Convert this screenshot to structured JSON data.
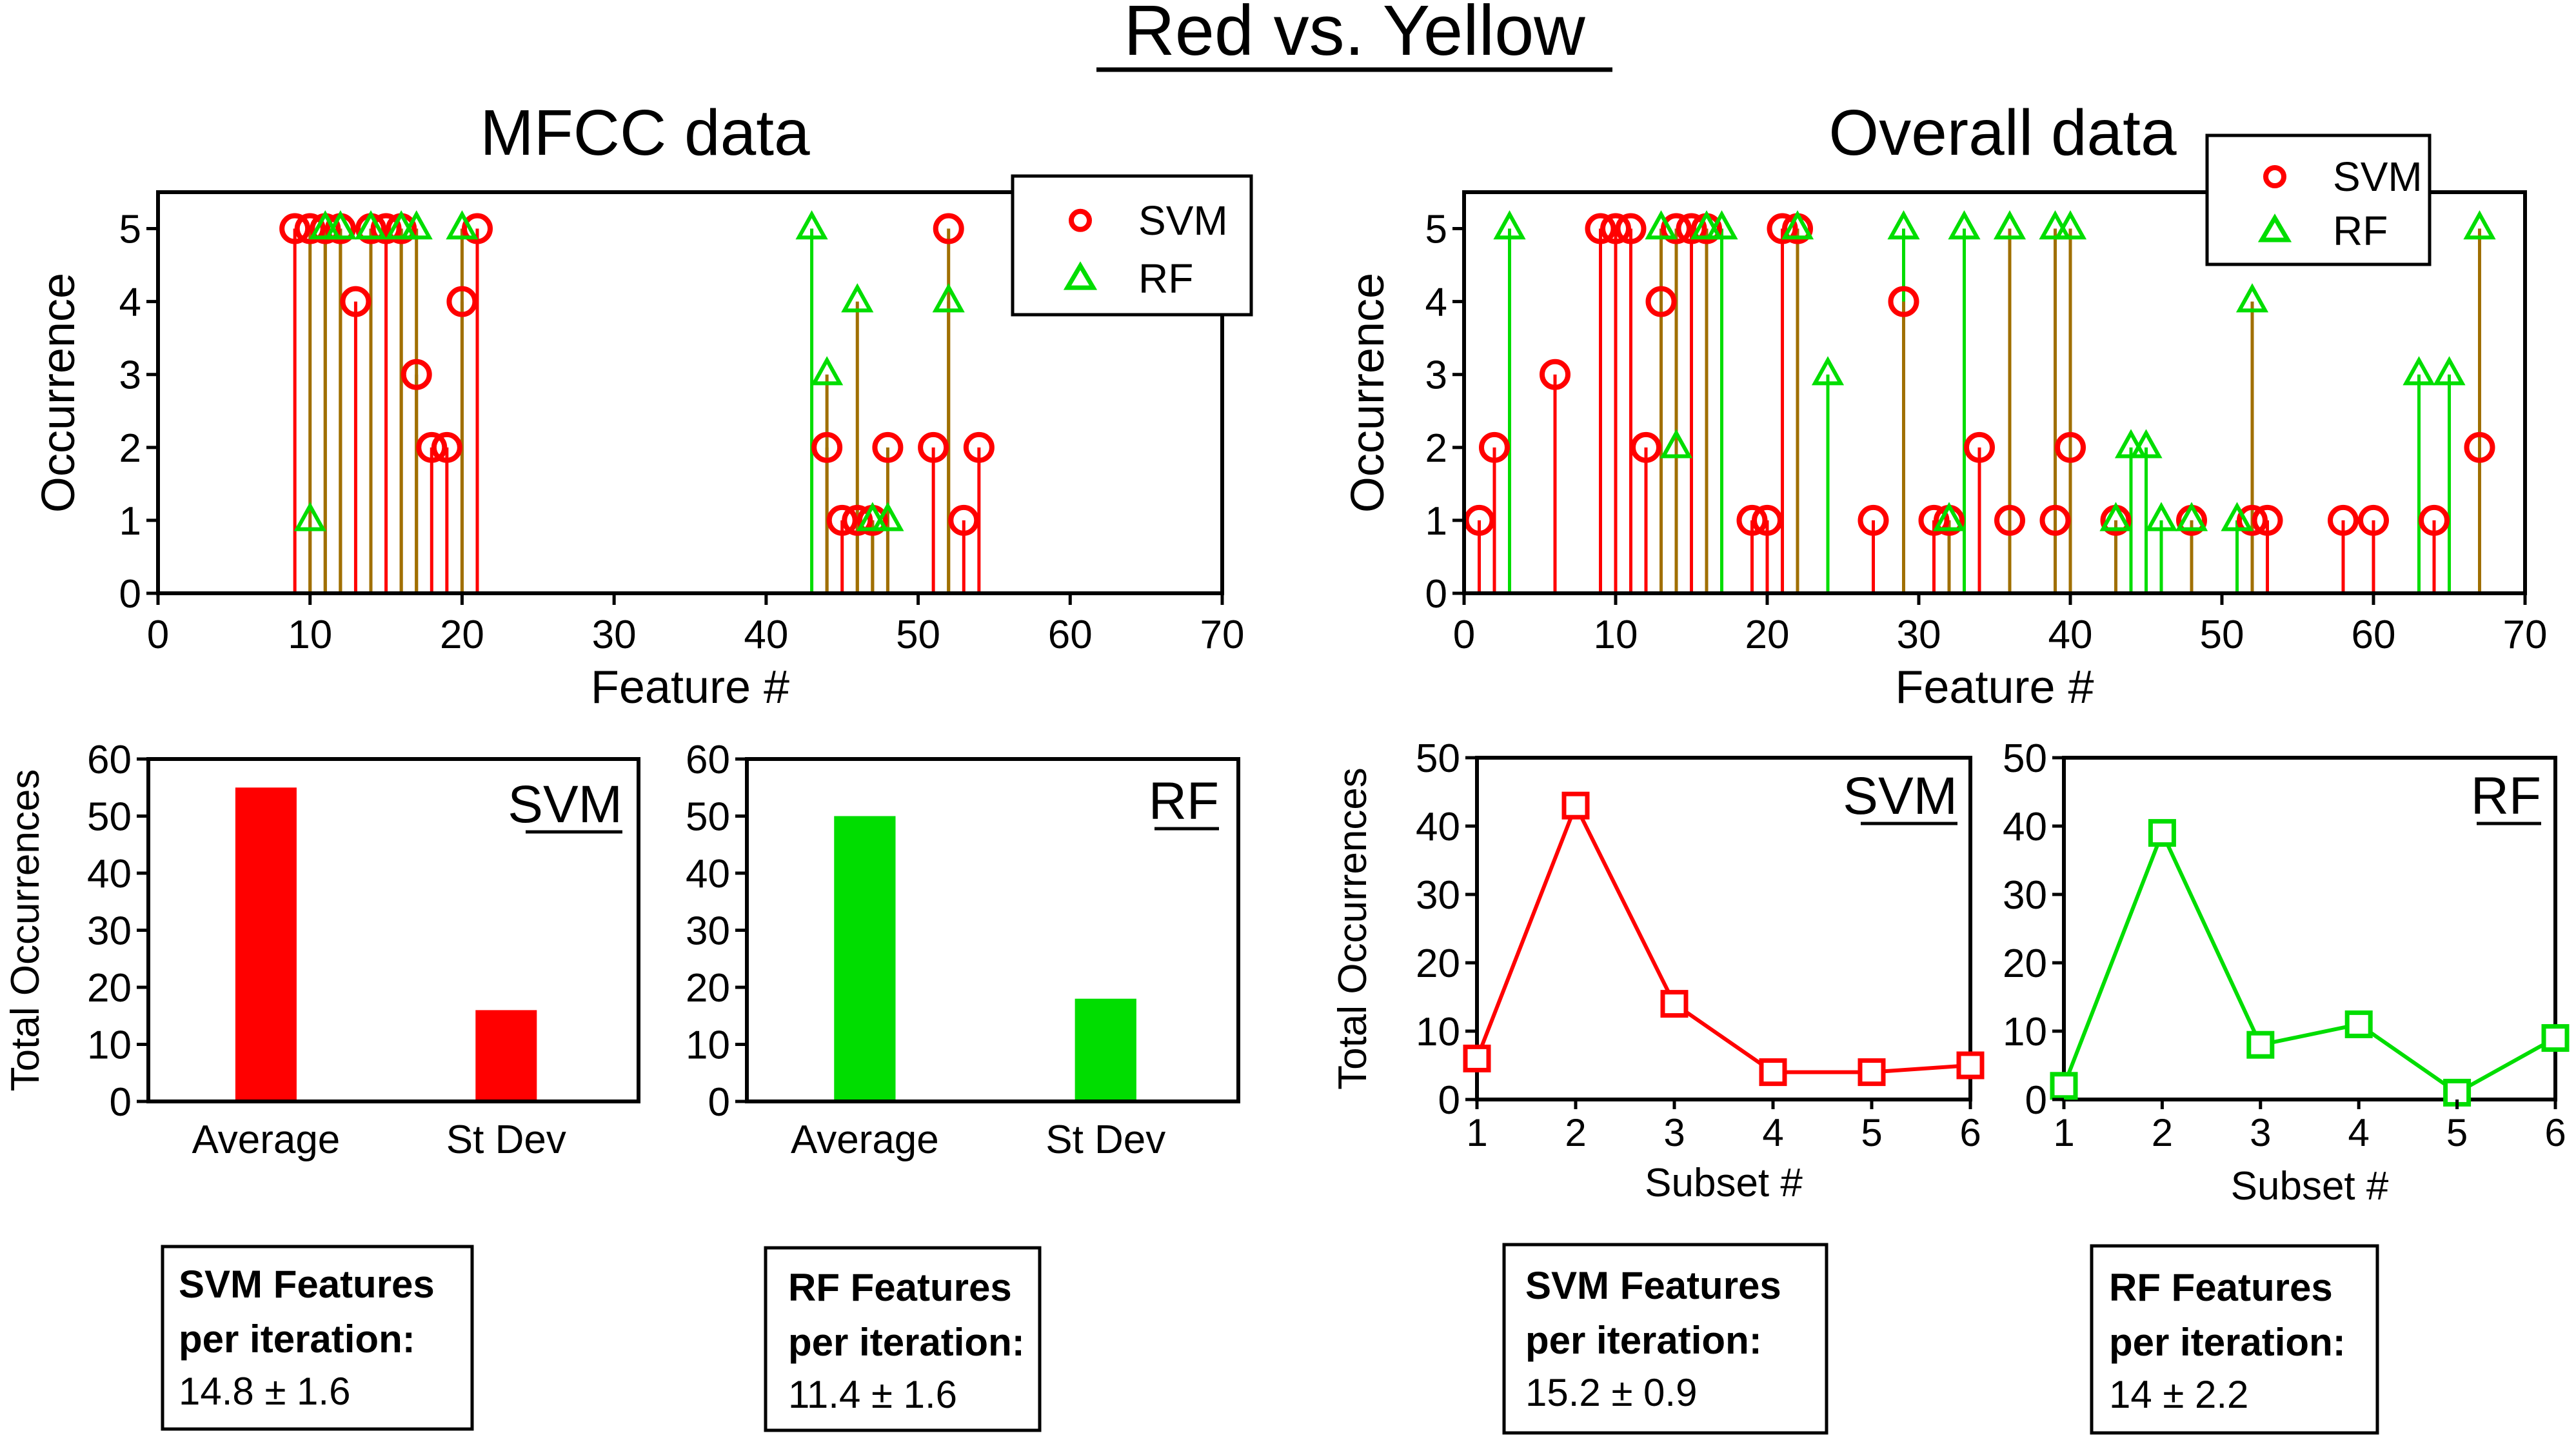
{
  "title": "Red vs. Yellow",
  "colors": {
    "svm": "#ff0000",
    "rf": "#00dd00",
    "overlap": "#a06f00",
    "axis": "#000000"
  },
  "chart_data": [
    {
      "id": "mfcc",
      "type": "stem",
      "title": "MFCC data",
      "xlabel": "Feature #",
      "ylabel": "Occurrence",
      "xlim": [
        0,
        70
      ],
      "ylim": [
        0,
        5.5
      ],
      "xticks": [
        "0",
        "10",
        "20",
        "30",
        "40",
        "50",
        "60",
        "70"
      ],
      "yticks": [
        "0",
        "1",
        "2",
        "3",
        "4",
        "5"
      ],
      "legend": {
        "position": "top-right",
        "svm_label": "SVM",
        "rf_label": "RF"
      },
      "series": [
        {
          "name": "SVM",
          "marker": "circle",
          "x": [
            9,
            10,
            11,
            12,
            13,
            14,
            15,
            16,
            17,
            18,
            19,
            20,
            21,
            44,
            45,
            46,
            47,
            48,
            51,
            52,
            53,
            54
          ],
          "y": [
            5,
            5,
            5,
            5,
            4,
            5,
            5,
            5,
            3,
            2,
            2,
            4,
            5,
            2,
            1,
            1,
            1,
            2,
            2,
            5,
            1,
            2
          ]
        },
        {
          "name": "RF",
          "marker": "triangle",
          "x": [
            10,
            11,
            12,
            14,
            16,
            17,
            20,
            43,
            44,
            46,
            47,
            48,
            52
          ],
          "y": [
            1,
            5,
            5,
            5,
            5,
            5,
            5,
            5,
            3,
            4,
            1,
            1,
            4
          ]
        }
      ]
    },
    {
      "id": "overall",
      "type": "stem",
      "title": "Overall data",
      "xlabel": "Feature #",
      "ylabel": "Occurrence",
      "xlim": [
        0,
        70
      ],
      "ylim": [
        0,
        5.5
      ],
      "xticks": [
        "0",
        "10",
        "20",
        "30",
        "40",
        "50",
        "60",
        "70"
      ],
      "yticks": [
        "0",
        "1",
        "2",
        "3",
        "4",
        "5"
      ],
      "legend": {
        "position": "top-right",
        "svm_label": "SVM",
        "rf_label": "RF"
      },
      "series": [
        {
          "name": "SVM",
          "marker": "circle",
          "x": [
            1,
            2,
            6,
            9,
            10,
            11,
            12,
            13,
            14,
            15,
            16,
            19,
            20,
            21,
            22,
            27,
            31,
            32,
            34,
            36,
            39,
            40,
            43,
            48,
            52,
            53,
            58,
            60,
            64,
            67
          ],
          "y": [
            1,
            2,
            3,
            5,
            5,
            5,
            2,
            4,
            5,
            5,
            5,
            1,
            1,
            5,
            5,
            1,
            1,
            1,
            2,
            1,
            1,
            2,
            1,
            1,
            1,
            1,
            1,
            1,
            1,
            2
          ]
        },
        {
          "name": "RF",
          "marker": "triangle",
          "x": [
            3,
            13,
            14,
            16,
            17,
            22,
            24,
            29,
            32,
            33,
            36,
            39,
            40,
            43,
            44,
            45,
            46,
            48,
            51,
            52,
            63,
            65,
            67
          ],
          "y": [
            5,
            5,
            2,
            5,
            5,
            5,
            3,
            5,
            1,
            5,
            5,
            5,
            5,
            1,
            2,
            2,
            1,
            1,
            1,
            4,
            3,
            3,
            5
          ]
        },
        {
          "name": "SVM",
          "marker": "circle",
          "x": [
            29
          ],
          "y": [
            4
          ]
        }
      ]
    },
    {
      "id": "svm_bar",
      "type": "bar",
      "label": "SVM",
      "ylabel": "Total Occurrences",
      "categories": [
        "Average",
        "St Dev"
      ],
      "values": [
        55,
        16
      ],
      "ylim": [
        0,
        60
      ],
      "yticks": [
        "0",
        "10",
        "20",
        "30",
        "40",
        "50",
        "60"
      ]
    },
    {
      "id": "rf_bar",
      "type": "bar",
      "label": "RF",
      "ylabel": "",
      "categories": [
        "Average",
        "St Dev"
      ],
      "values": [
        50,
        18
      ],
      "ylim": [
        0,
        60
      ],
      "yticks": [
        "0",
        "10",
        "20",
        "30",
        "40",
        "50",
        "60"
      ]
    },
    {
      "id": "svm_line",
      "type": "line",
      "label": "SVM",
      "xlabel": "Subset #",
      "ylabel": "Total Occurrences",
      "x": [
        1,
        2,
        3,
        4,
        5,
        6
      ],
      "values": [
        6,
        43,
        14,
        4,
        4,
        5
      ],
      "xlim": [
        1,
        6
      ],
      "ylim": [
        0,
        50
      ],
      "xticks": [
        "1",
        "2",
        "3",
        "4",
        "5",
        "6"
      ],
      "yticks": [
        "0",
        "10",
        "20",
        "30",
        "40",
        "50"
      ]
    },
    {
      "id": "rf_line",
      "type": "line",
      "label": "RF",
      "xlabel": "Subset #",
      "ylabel": "",
      "x": [
        1,
        2,
        3,
        4,
        5,
        6
      ],
      "values": [
        2,
        39,
        8,
        11,
        1,
        9
      ],
      "xlim": [
        1,
        6
      ],
      "ylim": [
        0,
        50
      ],
      "xticks": [
        "1",
        "2",
        "3",
        "4",
        "5",
        "6"
      ],
      "yticks": [
        "0",
        "10",
        "20",
        "30",
        "40",
        "50"
      ]
    }
  ],
  "summary_boxes": [
    {
      "line1": "SVM Features",
      "line2": "per iteration:",
      "value": "14.8 ± 1.6"
    },
    {
      "line1": "RF Features",
      "line2": "per iteration:",
      "value": "11.4 ± 1.6"
    },
    {
      "line1": "SVM Features",
      "line2": "per iteration:",
      "value": "15.2 ± 0.9"
    },
    {
      "line1": "RF Features",
      "line2": "per iteration:",
      "value": "14 ± 2.2"
    }
  ]
}
